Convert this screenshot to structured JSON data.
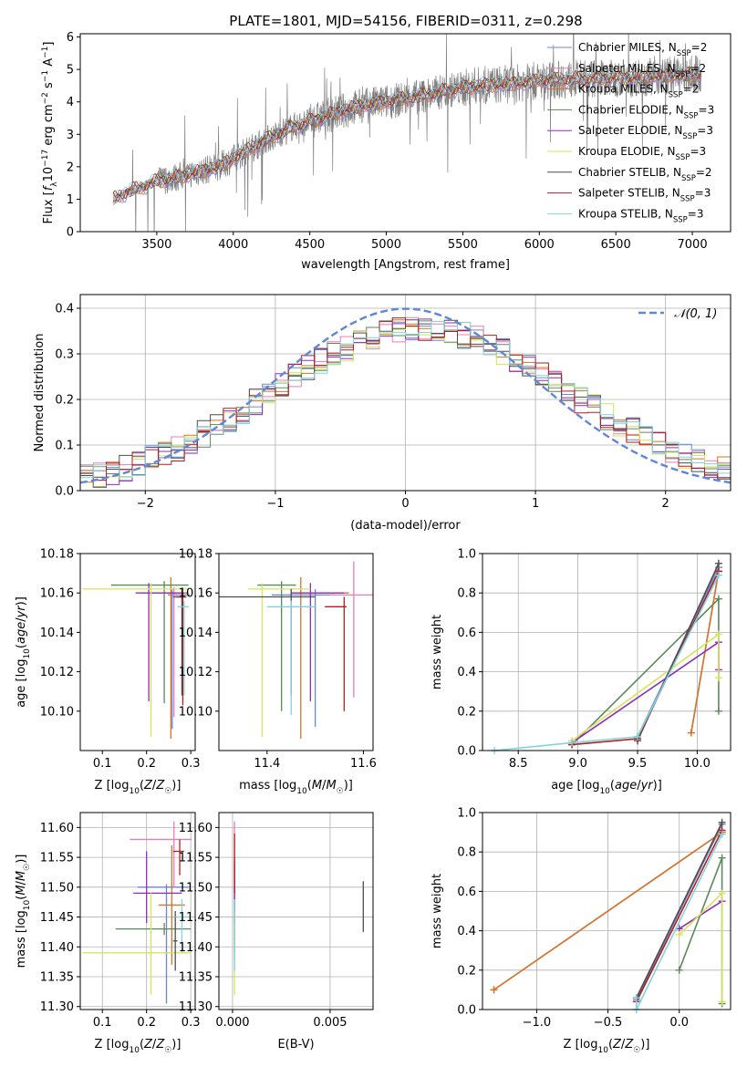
{
  "figure": {
    "title": "PLATE=1801, MJD=54156, FIBERID=0311, z=0.298"
  },
  "colors": {
    "chabrier_miles": "#6b86d6",
    "salpeter_miles": "#e77fb3",
    "kroupa_miles": "#d2762a",
    "chabrier_elodie": "#5a8a5a",
    "salpeter_elodie": "#8e2fb8",
    "kroupa_elodie": "#d8e35a",
    "chabrier_stelib": "#4d4d4d",
    "salpeter_stelib": "#b31d1d",
    "kroupa_stelib": "#7fd3df",
    "data": "#808080",
    "normal": "#5f87d8",
    "grid": "#b0b0b0"
  },
  "legend_spectrum": [
    {
      "label": "Chabrier MILES, N",
      "sub": "SSP",
      "n": "=2",
      "color_key": "chabrier_miles"
    },
    {
      "label": "Salpeter MILES, N",
      "sub": "SSP",
      "n": "=2",
      "color_key": "salpeter_miles"
    },
    {
      "label": "Kroupa MILES, N",
      "sub": "SSP",
      "n": "=2",
      "color_key": "kroupa_miles"
    },
    {
      "label": "Chabrier ELODIE, N",
      "sub": "SSP",
      "n": "=3",
      "color_key": "chabrier_elodie"
    },
    {
      "label": "Salpeter ELODIE, N",
      "sub": "SSP",
      "n": "=3",
      "color_key": "salpeter_elodie"
    },
    {
      "label": "Kroupa ELODIE, N",
      "sub": "SSP",
      "n": "=3",
      "color_key": "kroupa_elodie"
    },
    {
      "label": "Chabrier STELIB, N",
      "sub": "SSP",
      "n": "=2",
      "color_key": "chabrier_stelib"
    },
    {
      "label": "Salpeter STELIB, N",
      "sub": "SSP",
      "n": "=3",
      "color_key": "salpeter_stelib"
    },
    {
      "label": "Kroupa STELIB, N",
      "sub": "SSP",
      "n": "=3",
      "color_key": "kroupa_stelib"
    }
  ],
  "legend_normal": "𝒩(0, 1)",
  "chart_data": [
    {
      "id": "spectrum",
      "type": "line",
      "xlabel": "wavelength [Angstrom, rest frame]",
      "ylabel": "Flux [f_λ 10^-17 erg cm^-2 s^-1 A^-1]",
      "ylabel_parts": [
        "Flux [",
        "f",
        "λ",
        "10",
        "−17",
        " erg cm",
        "−2",
        " s",
        "−1",
        " A",
        "−1",
        "]"
      ],
      "xlim": [
        3000,
        7250
      ],
      "ylim": [
        0,
        6.1
      ],
      "xticks": [
        3500,
        4000,
        4500,
        5000,
        5500,
        6000,
        6500,
        7000
      ],
      "yticks": [
        0,
        1,
        2,
        3,
        4,
        5,
        6
      ],
      "model_profile_x": [
        3215,
        3300,
        3500,
        3700,
        3900,
        4000,
        4200,
        4400,
        4600,
        4800,
        5000,
        5200,
        5400,
        5600,
        5800,
        6000,
        6200,
        6400,
        6600,
        6800,
        7050
      ],
      "model_profile_y": [
        1.0,
        1.2,
        1.55,
        1.75,
        2.0,
        2.25,
        2.8,
        3.25,
        3.55,
        3.85,
        4.0,
        4.15,
        4.35,
        4.5,
        4.55,
        4.65,
        4.7,
        4.72,
        4.75,
        4.8,
        4.85
      ],
      "grid": true
    },
    {
      "id": "residuals",
      "type": "histogram",
      "xlabel": "(data-model)/error",
      "ylabel": "Normed distribution",
      "xlim": [
        -2.5,
        2.5
      ],
      "ylim": [
        0,
        0.43
      ],
      "xticks": [
        -2,
        -1,
        0,
        1,
        2
      ],
      "yticks": [
        0.0,
        0.1,
        0.2,
        0.3,
        0.4
      ],
      "bin_width": 0.1,
      "normal_mean": 0,
      "normal_sd": 1,
      "grid": true,
      "legend": "top-right"
    },
    {
      "id": "age_vs_Z",
      "type": "errorbar",
      "xlabel": "Z [log10(Z/Z☉)]",
      "ylabel": "age [log10(age/yr)]",
      "xlim": [
        0.05,
        0.31
      ],
      "ylim": [
        10.08,
        10.18
      ],
      "xticks": [
        0.1,
        0.2,
        0.3
      ],
      "yticks": [
        10.1,
        10.12,
        10.14,
        10.16,
        10.18
      ],
      "grid": false,
      "points": [
        {
          "c": "chabrier_miles",
          "x": 0.258,
          "xe": [
            0.01,
            0.04
          ],
          "y": 10.159,
          "ye": [
            0.068,
            0.003
          ]
        },
        {
          "c": "salpeter_miles",
          "x": 0.262,
          "xe": [
            0.07,
            0.03
          ],
          "y": 10.16,
          "ye": [
            0.063,
            0.003
          ]
        },
        {
          "c": "kroupa_miles",
          "x": 0.255,
          "xe": [
            0.01,
            0.04
          ],
          "y": 10.16,
          "ye": [
            0.074,
            0.008
          ]
        },
        {
          "c": "chabrier_elodie",
          "x": 0.24,
          "xe": [
            0.12,
            0.055
          ],
          "y": 10.164,
          "ye": [
            0.06,
            0.002
          ]
        },
        {
          "c": "salpeter_elodie",
          "x": 0.205,
          "xe": [
            0.03,
            0.08
          ],
          "y": 10.16,
          "ye": [
            0.055,
            0.005
          ]
        },
        {
          "c": "kroupa_elodie",
          "x": 0.21,
          "xe": [
            0.155,
            0.085
          ],
          "y": 10.162,
          "ye": [
            0.075,
            0.003
          ]
        },
        {
          "c": "chabrier_stelib",
          "x": 0.28,
          "xe": [
            0.02,
            0.01
          ],
          "y": 10.158,
          "ye": [
            0.05,
            0.004
          ]
        },
        {
          "c": "salpeter_stelib",
          "x": 0.282,
          "xe": [
            0.015,
            0.008
          ],
          "y": 10.158,
          "ye": [
            0.055,
            0.002
          ]
        },
        {
          "c": "kroupa_stelib",
          "x": 0.285,
          "xe": [
            0.015,
            0.01
          ],
          "y": 10.153,
          "ye": [
            0.045,
            0.003
          ]
        }
      ]
    },
    {
      "id": "age_vs_mass",
      "type": "errorbar",
      "xlabel": "mass [log10(M/M☉)]",
      "ylabel": "",
      "xlim": [
        11.3,
        11.62
      ],
      "ylim": [
        10.08,
        10.18
      ],
      "xticks": [
        11.4,
        11.6
      ],
      "yticks": [
        10.1,
        10.12,
        10.14,
        10.16,
        10.18
      ],
      "grid": false,
      "points": [
        {
          "c": "chabrier_miles",
          "x": 11.5,
          "xe": [
            0.09,
            0.04
          ],
          "y": 10.159,
          "ye": [
            0.067,
            0.003
          ]
        },
        {
          "c": "salpeter_miles",
          "x": 11.58,
          "xe": [
            0.05,
            0.04
          ],
          "y": 10.159,
          "ye": [
            0.052,
            0.017
          ]
        },
        {
          "c": "kroupa_miles",
          "x": 11.47,
          "xe": [
            0.02,
            0.1
          ],
          "y": 10.16,
          "ye": [
            0.074,
            0.008
          ]
        },
        {
          "c": "chabrier_elodie",
          "x": 11.43,
          "xe": [
            0.05,
            0.03
          ],
          "y": 10.164,
          "ye": [
            0.064,
            0.002
          ]
        },
        {
          "c": "salpeter_elodie",
          "x": 11.49,
          "xe": [
            0.04,
            0.07
          ],
          "y": 10.16,
          "ye": [
            0.055,
            0.005
          ]
        },
        {
          "c": "kroupa_elodie",
          "x": 11.39,
          "xe": [
            0.03,
            0.1
          ],
          "y": 10.162,
          "ye": [
            0.075,
            0.003
          ]
        },
        {
          "c": "chabrier_stelib",
          "x": 11.45,
          "xe": [
            0.15,
            0.05
          ],
          "y": 10.158,
          "ye": [
            0.05,
            0.004
          ]
        },
        {
          "c": "salpeter_stelib",
          "x": 11.56,
          "xe": [
            0.04,
            0.005
          ],
          "y": 10.153,
          "ye": [
            0.053,
            0.005
          ]
        },
        {
          "c": "kroupa_stelib",
          "x": 11.45,
          "xe": [
            0.05,
            0.05
          ],
          "y": 10.153,
          "ye": [
            0.055,
            0.003
          ]
        }
      ]
    },
    {
      "id": "weights_vs_age",
      "type": "line",
      "xlabel": "age [log10(age/yr)]",
      "ylabel": "mass weight",
      "xlim": [
        8.2,
        10.28
      ],
      "ylim": [
        0,
        1.0
      ],
      "xticks": [
        8.5,
        9.0,
        9.5,
        10.0
      ],
      "yticks": [
        0.0,
        0.2,
        0.4,
        0.6,
        0.8,
        1.0
      ],
      "grid": true,
      "series": [
        {
          "c": "chabrier_miles",
          "x": [
            9.5,
            10.18
          ],
          "y": [
            0.07,
            0.93
          ]
        },
        {
          "c": "salpeter_miles",
          "x": [
            9.95,
            10.18
          ],
          "y": [
            0.09,
            0.91
          ]
        },
        {
          "c": "kroupa_miles",
          "x": [
            9.95,
            10.18
          ],
          "y": [
            0.09,
            0.91
          ]
        },
        {
          "c": "chabrier_elodie",
          "x": [
            8.95,
            10.18,
            10.18
          ],
          "y": [
            0.03,
            0.77,
            0.2
          ]
        },
        {
          "c": "salpeter_elodie",
          "x": [
            8.95,
            10.18,
            10.18
          ],
          "y": [
            0.04,
            0.55,
            0.41
          ]
        },
        {
          "c": "kroupa_elodie",
          "x": [
            8.95,
            10.18,
            10.18
          ],
          "y": [
            0.05,
            0.59,
            0.37
          ]
        },
        {
          "c": "chabrier_stelib",
          "x": [
            9.5,
            10.18
          ],
          "y": [
            0.05,
            0.95
          ]
        },
        {
          "c": "salpeter_stelib",
          "x": [
            8.95,
            9.5,
            10.18
          ],
          "y": [
            0.03,
            0.06,
            0.91
          ]
        },
        {
          "c": "kroupa_stelib",
          "x": [
            8.3,
            8.95,
            9.5,
            10.18
          ],
          "y": [
            0.0,
            0.04,
            0.07,
            0.89
          ]
        }
      ]
    },
    {
      "id": "mass_vs_Z",
      "type": "errorbar",
      "xlabel": "Z [log10(Z/Z☉)]",
      "ylabel": "mass [log10(M/M☉)]",
      "xlim": [
        0.05,
        0.31
      ],
      "ylim": [
        11.295,
        11.625
      ],
      "xticks": [
        0.1,
        0.2,
        0.3
      ],
      "yticks": [
        11.3,
        11.35,
        11.4,
        11.45,
        11.5,
        11.55,
        11.6
      ],
      "grid": true,
      "points": [
        {
          "c": "chabrier_miles",
          "x": 0.245,
          "xe": [
            0.065,
            0.05
          ],
          "y": 11.5,
          "ye": [
            0.195,
            0.005
          ]
        },
        {
          "c": "salpeter_miles",
          "x": 0.262,
          "xe": [
            0.1,
            0.04
          ],
          "y": 11.58,
          "ye": [
            0.08,
            0.03
          ]
        },
        {
          "c": "kroupa_miles",
          "x": 0.257,
          "xe": [
            0.03,
            0.03
          ],
          "y": 11.47,
          "ye": [
            0.1,
            0.1
          ]
        },
        {
          "c": "chabrier_elodie",
          "x": 0.24,
          "xe": [
            0.11,
            0.06
          ],
          "y": 11.43,
          "ye": [
            0.01,
            0.01
          ]
        },
        {
          "c": "salpeter_elodie",
          "x": 0.2,
          "xe": [
            0.03,
            0.08
          ],
          "y": 11.49,
          "ye": [
            0.05,
            0.07
          ]
        },
        {
          "c": "kroupa_elodie",
          "x": 0.21,
          "xe": [
            0.155,
            0.09
          ],
          "y": 11.39,
          "ye": [
            0.07,
            0.1
          ]
        },
        {
          "c": "chabrier_stelib",
          "x": 0.265,
          "xe": [
            0.005,
            0.005
          ],
          "y": 11.41,
          "ye": [
            0.05,
            0.05
          ]
        },
        {
          "c": "salpeter_stelib",
          "x": 0.275,
          "xe": [
            0.015,
            0.01
          ],
          "y": 11.56,
          "ye": [
            0.04,
            0.02
          ]
        },
        {
          "c": "kroupa_stelib",
          "x": 0.28,
          "xe": [
            0.015,
            0.015
          ],
          "y": 11.45,
          "ye": [
            0.06,
            0.03
          ]
        }
      ]
    },
    {
      "id": "mass_vs_ebv",
      "type": "errorbar",
      "xlabel": "E(B-V)",
      "ylabel": "",
      "xlim": [
        -0.0007,
        0.0072
      ],
      "ylim": [
        11.295,
        11.625
      ],
      "xticks": [
        0.0,
        0.005
      ],
      "xtick_labels": [
        "0.000",
        "0.005"
      ],
      "yticks": [
        11.3,
        11.35,
        11.4,
        11.45,
        11.5,
        11.55,
        11.6
      ],
      "grid": true,
      "points": [
        {
          "c": "chabrier_miles",
          "x": 0.0001,
          "xe": [
            0,
            0
          ],
          "y": 11.5,
          "ye": [
            0.09,
            0.05
          ]
        },
        {
          "c": "salpeter_miles",
          "x": 0.0001,
          "xe": [
            0,
            0
          ],
          "y": 11.58,
          "ye": [
            0.05,
            0.03
          ]
        },
        {
          "c": "kroupa_miles",
          "x": 0.0001,
          "xe": [
            0,
            0
          ],
          "y": 11.47,
          "ye": [
            0.08,
            0.08
          ]
        },
        {
          "c": "chabrier_elodie",
          "x": 0.0001,
          "xe": [
            0,
            0
          ],
          "y": 11.43,
          "ye": [
            0.05,
            0.05
          ]
        },
        {
          "c": "salpeter_elodie",
          "x": 0.0001,
          "xe": [
            0,
            0
          ],
          "y": 11.49,
          "ye": [
            0.05,
            0.05
          ]
        },
        {
          "c": "kroupa_elodie",
          "x": 0.0001,
          "xe": [
            0,
            0
          ],
          "y": 11.39,
          "ye": [
            0.07,
            0.07
          ]
        },
        {
          "c": "chabrier_stelib",
          "x": 0.0067,
          "xe": [
            0,
            0
          ],
          "y": 11.465,
          "ye": [
            0.04,
            0.045
          ]
        },
        {
          "c": "salpeter_stelib",
          "x": 0.0001,
          "xe": [
            0,
            0
          ],
          "y": 11.54,
          "ye": [
            0.05,
            0.05
          ]
        },
        {
          "c": "kroupa_stelib",
          "x": 0.0001,
          "xe": [
            0,
            0
          ],
          "y": 11.42,
          "ye": [
            0.06,
            0.06
          ]
        }
      ]
    },
    {
      "id": "weights_vs_Z",
      "type": "line",
      "xlabel": "Z [log10(Z/Z☉)]",
      "ylabel": "mass weight",
      "xlim": [
        -1.38,
        0.36
      ],
      "ylim": [
        0,
        1.0
      ],
      "xticks": [
        -1.0,
        -0.5,
        0.0
      ],
      "yticks": [
        0.0,
        0.2,
        0.4,
        0.6,
        0.8,
        1.0
      ],
      "grid": true,
      "series": [
        {
          "c": "chabrier_miles",
          "x": [
            -0.3,
            0.3
          ],
          "y": [
            0.05,
            0.94
          ]
        },
        {
          "c": "salpeter_miles",
          "x": [
            -1.3,
            0.3
          ],
          "y": [
            0.1,
            0.9
          ]
        },
        {
          "c": "kroupa_miles",
          "x": [
            -1.3,
            0.3
          ],
          "y": [
            0.1,
            0.9
          ]
        },
        {
          "c": "chabrier_elodie",
          "x": [
            0.0,
            0.3,
            0.3
          ],
          "y": [
            0.2,
            0.77,
            0.03
          ]
        },
        {
          "c": "salpeter_elodie",
          "x": [
            0.0,
            0.3
          ],
          "y": [
            0.41,
            0.55
          ]
        },
        {
          "c": "kroupa_elodie",
          "x": [
            0.0,
            0.3,
            0.3
          ],
          "y": [
            0.38,
            0.59,
            0.04
          ]
        },
        {
          "c": "chabrier_stelib",
          "x": [
            -0.3,
            0.3
          ],
          "y": [
            0.06,
            0.95
          ]
        },
        {
          "c": "salpeter_stelib",
          "x": [
            -0.3,
            0.3
          ],
          "y": [
            0.04,
            0.91
          ]
        },
        {
          "c": "kroupa_stelib",
          "x": [
            -0.3,
            -0.3,
            0.3
          ],
          "y": [
            0.06,
            0.0,
            0.89
          ]
        }
      ]
    }
  ]
}
